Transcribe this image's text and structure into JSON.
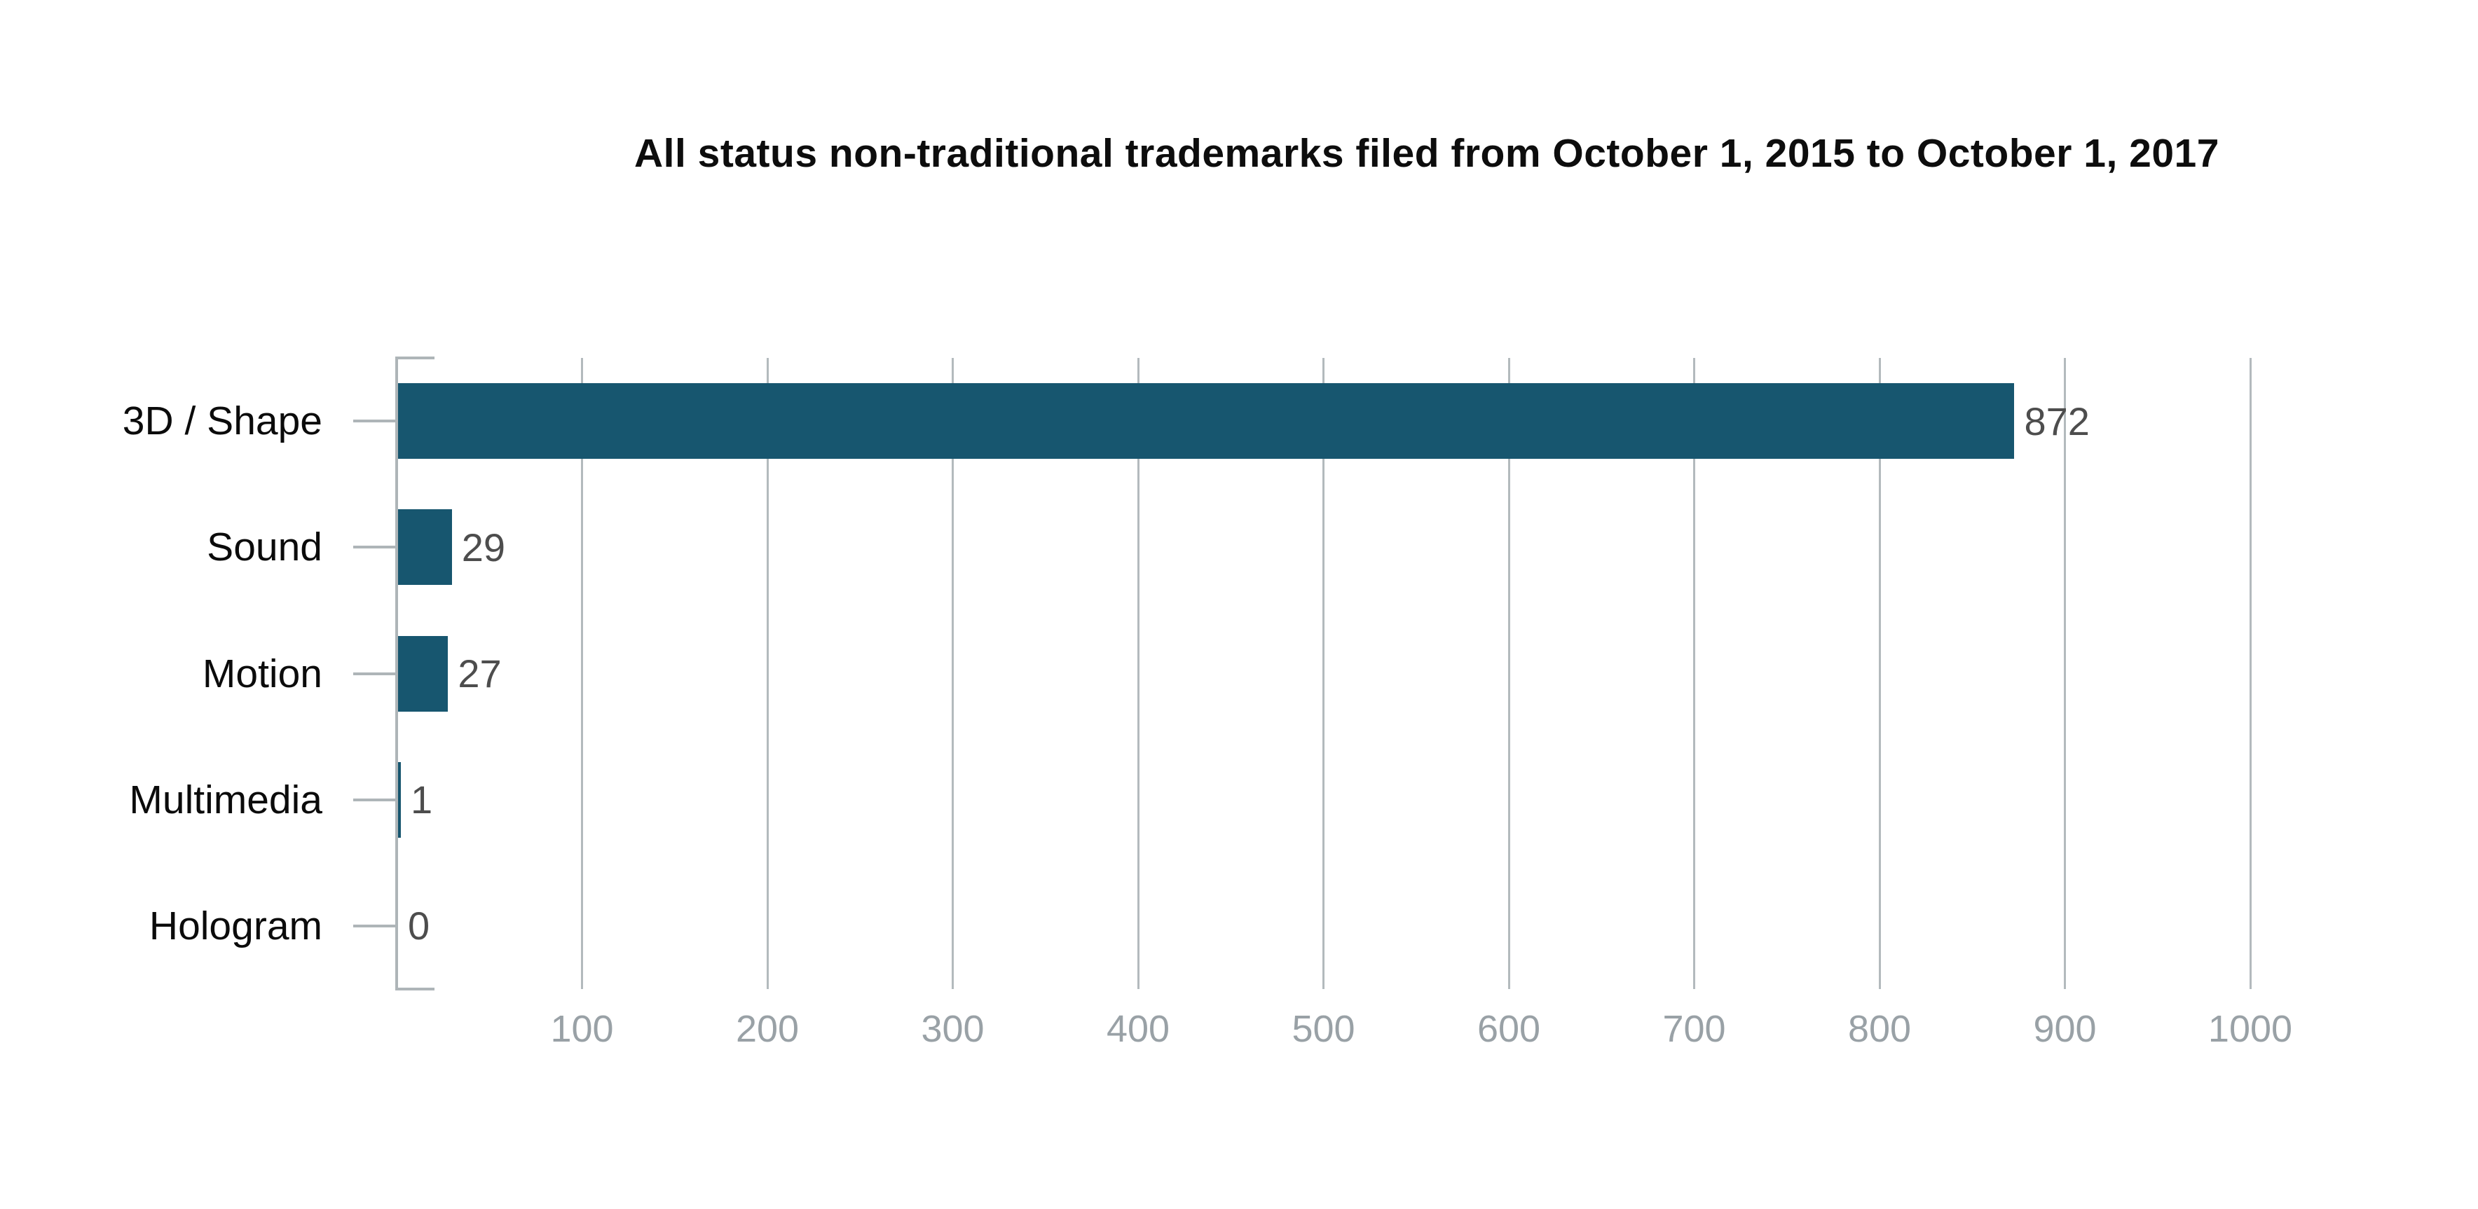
{
  "title": "All status non-traditional trademarks filed from October 1, 2015 to October 1, 2017",
  "colors": {
    "bar": "#17566F",
    "axis": "#AEB5B8",
    "gridline": "#B3BABD",
    "tick_label": "#99A1A6",
    "value_label": "#4D4D4D",
    "category_label": "#0B0B0B",
    "title": "#0D0D0D",
    "background": "#FFFFFF"
  },
  "chart_data": {
    "type": "bar",
    "orientation": "horizontal",
    "title": "All status non-traditional trademarks filed from October 1, 2015 to October 1, 2017",
    "categories": [
      "3D / Shape",
      "Sound",
      "Motion",
      "Multimedia",
      "Hologram"
    ],
    "values": [
      872,
      29,
      27,
      1,
      0
    ],
    "value_labels": [
      "872",
      "29",
      "27",
      "1",
      "0"
    ],
    "xlabel": "",
    "ylabel": "",
    "xlim": [
      0,
      1000
    ],
    "xticks": [
      100,
      200,
      300,
      400,
      500,
      600,
      700,
      800,
      900,
      1000
    ],
    "grid": true,
    "legend": false
  }
}
